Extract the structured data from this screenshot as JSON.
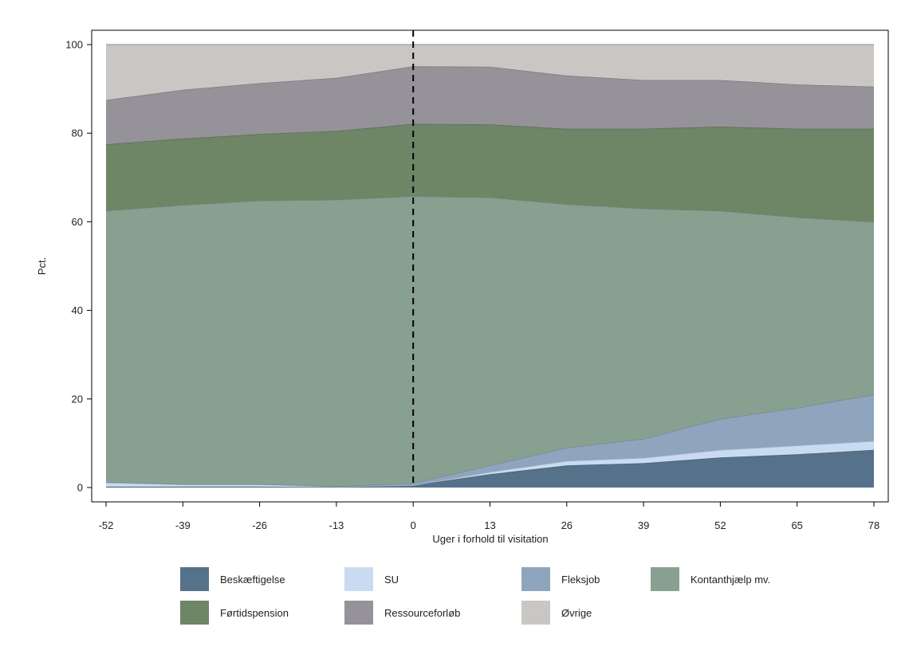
{
  "chart_data": {
    "type": "area",
    "xlabel": "Uger i forhold til visitation",
    "ylabel": "Pct.",
    "xlim": [
      -52,
      78
    ],
    "ylim": [
      0,
      100
    ],
    "xticks": [
      -52,
      -39,
      -26,
      -13,
      0,
      13,
      26,
      39,
      52,
      65,
      78
    ],
    "yticks": [
      0,
      20,
      40,
      60,
      80,
      100
    ],
    "vertical_line": {
      "x": 0,
      "style": "dashed"
    },
    "legend_position": "bottom",
    "x": [
      -52,
      -39,
      -26,
      -13,
      0,
      13,
      26,
      39,
      52,
      65,
      78
    ],
    "series": [
      {
        "name": "Beskæftigelse",
        "color": "#56728a",
        "values": [
          0.2,
          0.2,
          0.2,
          0.1,
          0.5,
          3.0,
          5.0,
          5.5,
          6.8,
          7.5,
          8.5
        ]
      },
      {
        "name": "SU",
        "color": "#c8dbf0",
        "values": [
          0.9,
          0.5,
          0.5,
          0.1,
          0.0,
          0.5,
          1.0,
          1.2,
          1.7,
          2.0,
          2.0
        ]
      },
      {
        "name": "Fleksjob",
        "color": "#8ea5bd",
        "values": [
          0.2,
          0.1,
          0.1,
          0.1,
          0.5,
          1.5,
          3.0,
          4.3,
          7.0,
          8.5,
          10.5
        ]
      },
      {
        "name": "Kontanthjælp mv.",
        "color": "#88a090",
        "values": [
          61.2,
          63.0,
          64.0,
          64.7,
          64.8,
          60.5,
          55.0,
          52.0,
          47.0,
          43.0,
          39.0
        ]
      },
      {
        "name": "Førtidspension",
        "color": "#6e8566",
        "values": [
          15.0,
          15.0,
          15.0,
          15.5,
          16.3,
          16.5,
          17.0,
          18.0,
          19.0,
          20.0,
          21.0
        ]
      },
      {
        "name": "Ressourceforløb",
        "color": "#96929a",
        "values": [
          10.0,
          11.0,
          11.5,
          12.0,
          13.0,
          13.0,
          12.0,
          11.0,
          10.5,
          10.0,
          9.5
        ]
      },
      {
        "name": "Øvrige",
        "color": "#cac6c4",
        "values": [
          12.5,
          10.2,
          8.7,
          7.5,
          4.9,
          5.0,
          7.0,
          8.0,
          8.0,
          9.0,
          9.5
        ]
      }
    ]
  }
}
